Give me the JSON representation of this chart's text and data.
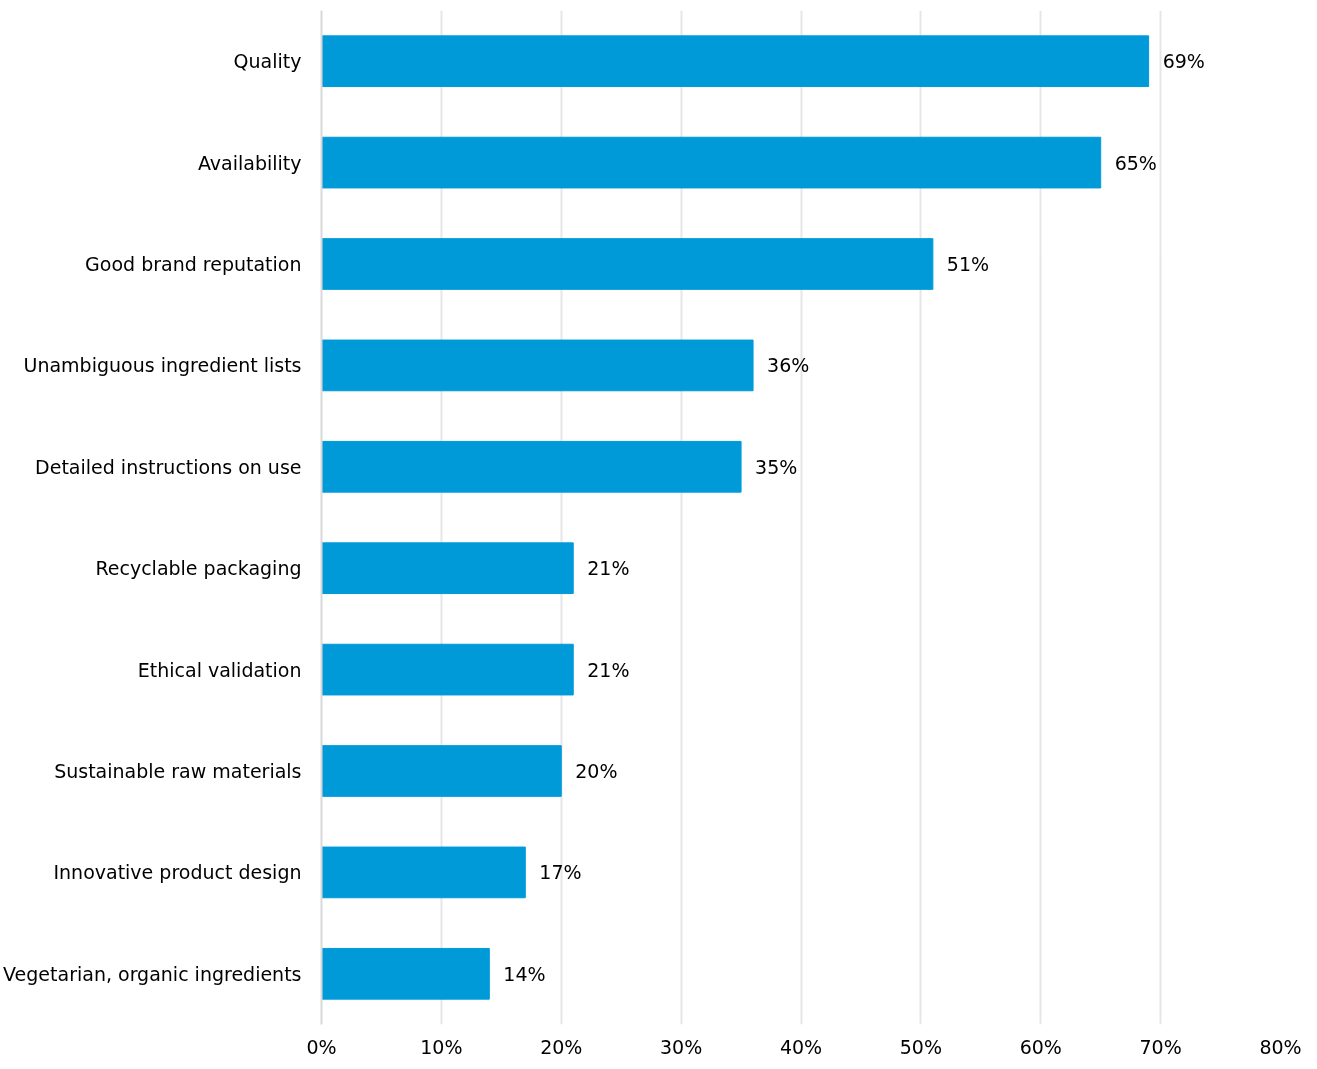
{
  "chart_data": {
    "type": "bar",
    "orientation": "horizontal",
    "categories": [
      "Quality",
      "Availability",
      "Good brand reputation",
      "Unambiguous ingredient lists",
      "Detailed instructions on use",
      "Recyclable packaging",
      "Ethical validation",
      "Sustainable raw materials",
      "Innovative product design",
      "Vegetarian, organic ingredients"
    ],
    "values": [
      69,
      65,
      51,
      36,
      35,
      21,
      21,
      20,
      17,
      14
    ],
    "value_labels": [
      "69%",
      "65%",
      "51%",
      "36%",
      "35%",
      "21%",
      "21%",
      "20%",
      "17%",
      "14%"
    ],
    "color": "#009ad9",
    "xlim": [
      0,
      80
    ],
    "xticks": [
      {
        "value": 0,
        "label": "0%"
      },
      {
        "value": 10,
        "label": "10%"
      },
      {
        "value": 20,
        "label": "20%"
      },
      {
        "value": 30,
        "label": "30%"
      },
      {
        "value": 40,
        "label": "40%"
      },
      {
        "value": 50,
        "label": "50%"
      },
      {
        "value": 60,
        "label": "60%"
      },
      {
        "value": 70,
        "label": "70%"
      },
      {
        "value": 80,
        "label": "80%"
      }
    ],
    "grid": "x"
  }
}
